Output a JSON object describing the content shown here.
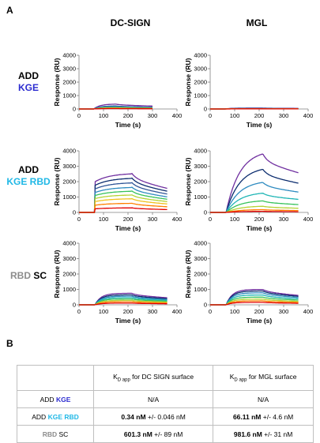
{
  "panel_a": "A",
  "panel_b": "B",
  "columns": [
    "DC-SIGN",
    "MGL"
  ],
  "rows": [
    {
      "line1": "ADD",
      "line1_color": "#000000",
      "line2": "KGE",
      "line2_color": "#2b2bd0"
    },
    {
      "line1": "ADD",
      "line1_color": "#000000",
      "line2": "KGE RBD",
      "line2_color": "#20b8e6"
    },
    {
      "line1": "RBD",
      "line1_color": "#8c8c8c",
      "line2": "SC",
      "line2_color": "#000000"
    }
  ],
  "axis": {
    "xlabel": "Time (s)",
    "ylabel": "Response (RU)"
  },
  "chart_data": [
    {
      "type": "line",
      "id": "dcsign-kge",
      "xlim": [
        0,
        400
      ],
      "ylim": [
        0,
        4000
      ],
      "xticks": [
        0,
        100,
        200,
        300,
        400
      ],
      "yticks": [
        0,
        1000,
        2000,
        3000,
        4000
      ],
      "inject": [
        60,
        150
      ],
      "end": 300,
      "plateaus": [
        370,
        230,
        170,
        120,
        80,
        50,
        30
      ],
      "kind": "rise"
    },
    {
      "type": "line",
      "id": "mgl-kge",
      "xlim": [
        0,
        400
      ],
      "ylim": [
        0,
        4000
      ],
      "xticks": [
        0,
        100,
        200,
        300,
        400
      ],
      "yticks": [
        0,
        1000,
        2000,
        3000,
        4000
      ],
      "inject": [
        60,
        210
      ],
      "end": 360,
      "plateaus": [
        70,
        50,
        35,
        25,
        15,
        10,
        5
      ],
      "kind": "rise"
    },
    {
      "type": "line",
      "id": "dcsign-kgerbd",
      "xlim": [
        0,
        400
      ],
      "ylim": [
        0,
        4000
      ],
      "xticks": [
        0,
        100,
        200,
        300,
        400
      ],
      "yticks": [
        0,
        1000,
        2000,
        3000,
        4000
      ],
      "inject": [
        65,
        215
      ],
      "end": 360,
      "plateaus": [
        2550,
        2250,
        1950,
        1650,
        1400,
        1150,
        900,
        600,
        300
      ],
      "kind": "fast"
    },
    {
      "type": "line",
      "id": "mgl-kgerbd",
      "xlim": [
        0,
        400
      ],
      "ylim": [
        0,
        4000
      ],
      "xticks": [
        0,
        100,
        200,
        300,
        400
      ],
      "yticks": [
        0,
        1000,
        2000,
        3000,
        4000
      ],
      "inject": [
        65,
        215
      ],
      "end": 360,
      "plateaus": [
        3800,
        2800,
        1950,
        1250,
        750,
        400,
        180,
        70
      ],
      "kind": "slow"
    },
    {
      "type": "line",
      "id": "dcsign-rbdsc",
      "xlim": [
        0,
        400
      ],
      "ylim": [
        0,
        4000
      ],
      "xticks": [
        0,
        100,
        200,
        300,
        400
      ],
      "yticks": [
        0,
        1000,
        2000,
        3000,
        4000
      ],
      "inject": [
        65,
        215
      ],
      "end": 360,
      "plateaus": [
        750,
        650,
        560,
        470,
        380,
        290,
        200,
        110
      ],
      "kind": "rise"
    },
    {
      "type": "line",
      "id": "mgl-rbdsc",
      "xlim": [
        0,
        400
      ],
      "ylim": [
        0,
        4000
      ],
      "xticks": [
        0,
        100,
        200,
        300,
        400
      ],
      "yticks": [
        0,
        1000,
        2000,
        3000,
        4000
      ],
      "inject": [
        65,
        215
      ],
      "end": 360,
      "plateaus": [
        1000,
        900,
        780,
        640,
        500,
        370,
        260,
        160
      ],
      "kind": "rise"
    }
  ],
  "series_colors": [
    "#7030a0",
    "#0b2c6e",
    "#2f5597",
    "#2e8bc0",
    "#1fb5b5",
    "#37c25a",
    "#b5d334",
    "#f0c21e",
    "#ff7f00",
    "#e00000"
  ],
  "table": {
    "header_dc": "for DC SIGN surface",
    "header_mgl": "for MGL surface",
    "kd_main": "K",
    "kd_sub_d": "D",
    "kd_sub_app": "app",
    "rows": [
      {
        "label1": "ADD",
        "label2": "KGE",
        "dc_bold": "N/A",
        "dc_rest": "",
        "mgl_bold": "N/A",
        "mgl_rest": ""
      },
      {
        "label1": "ADD",
        "label2": "KGE RBD",
        "dc_bold": "0.34 nM",
        "dc_rest": " +/- 0.046 nM",
        "mgl_bold": "66.11 nM",
        "mgl_rest": " +/- 4.6 nM"
      },
      {
        "label1": "RBD",
        "label2": "SC",
        "dc_bold": "601.3 nM",
        "dc_rest": " +/- 89 nM",
        "mgl_bold": "981.6 nM",
        "mgl_rest": " +/- 31 nM"
      }
    ]
  }
}
